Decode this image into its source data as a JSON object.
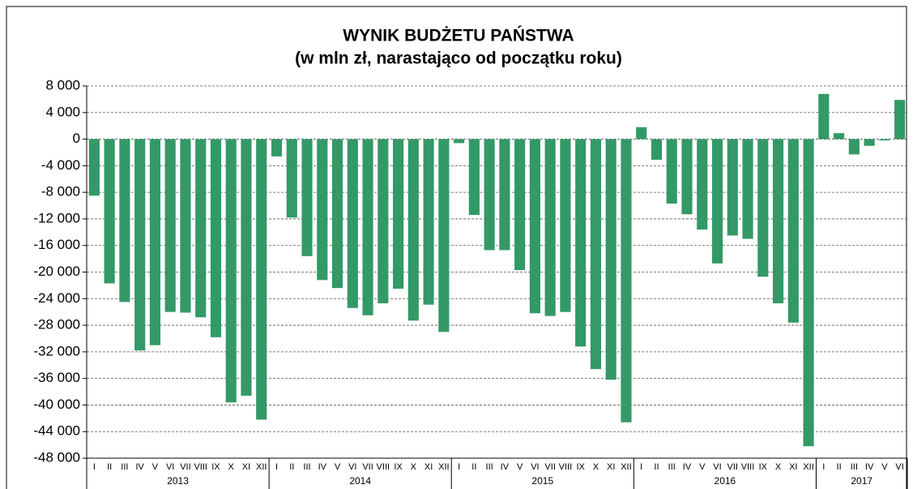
{
  "chart_data": {
    "type": "bar",
    "title": "WYNIK BUDŻETU PAŃSTWA",
    "subtitle": "(w mln zł, narastająco od początku roku)",
    "groups": [
      {
        "label": "2013",
        "categories": [
          "I",
          "II",
          "III",
          "IV",
          "V",
          "VI",
          "VII",
          "VIII",
          "IX",
          "X",
          "XI",
          "XII"
        ]
      },
      {
        "label": "2014",
        "categories": [
          "I",
          "II",
          "III",
          "IV",
          "V",
          "VI",
          "VII",
          "VIII",
          "IX",
          "X",
          "XI",
          "XII"
        ]
      },
      {
        "label": "2015",
        "categories": [
          "I",
          "II",
          "III",
          "IV",
          "V",
          "VI",
          "VII",
          "VIII",
          "IX",
          "X",
          "XI",
          "XII"
        ]
      },
      {
        "label": "2016",
        "categories": [
          "I",
          "II",
          "III",
          "IV",
          "V",
          "VI",
          "VII",
          "VIII",
          "IX",
          "X",
          "XI",
          "XII"
        ]
      },
      {
        "label": "2017",
        "categories": [
          "I",
          "II",
          "III",
          "IV",
          "V",
          "VI"
        ]
      }
    ],
    "values": [
      -8500,
      -21700,
      -24500,
      -31800,
      -31000,
      -26000,
      -26100,
      -26800,
      -29800,
      -39600,
      -38600,
      -42200,
      -2600,
      -11800,
      -17600,
      -21200,
      -22400,
      -25400,
      -26500,
      -24700,
      -22500,
      -27300,
      -24900,
      -29000,
      -600,
      -11400,
      -16700,
      -16700,
      -19700,
      -26200,
      -26600,
      -26000,
      -31200,
      -34600,
      -36200,
      -42600,
      1800,
      -3100,
      -9700,
      -11300,
      -13600,
      -18700,
      -14500,
      -15000,
      -20700,
      -24700,
      -27600,
      -46200,
      6800,
      900,
      -2300,
      -1000,
      -200,
      5900
    ],
    "color": "#339966",
    "ylim": [
      -48000,
      8000
    ],
    "yticks": [
      {
        "value": 8000,
        "label": "8 000"
      },
      {
        "value": 4000,
        "label": "4 000"
      },
      0,
      {
        "value": -4000,
        "label": "-4 000"
      },
      {
        "value": -8000,
        "label": "-8 000"
      },
      {
        "value": -12000,
        "label": "-12 000"
      },
      {
        "value": -16000,
        "label": "-16 000"
      },
      {
        "value": -20000,
        "label": "-20 000"
      },
      {
        "value": -24000,
        "label": "-24 000"
      },
      {
        "value": -28000,
        "label": "-28 000"
      },
      {
        "value": -32000,
        "label": "-32 000"
      },
      {
        "value": -36000,
        "label": "-36 000"
      },
      {
        "value": -40000,
        "label": "-40 000"
      },
      {
        "value": -44000,
        "label": "-44 000"
      },
      {
        "value": -48000,
        "label": "-48 000"
      }
    ],
    "grid": true
  }
}
